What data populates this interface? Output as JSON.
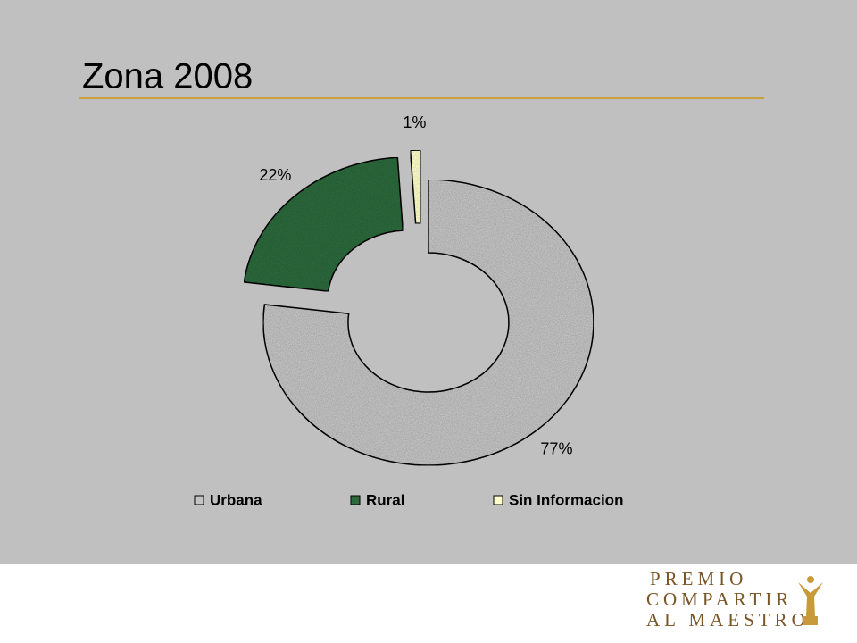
{
  "chart_data": {
    "type": "doughnut",
    "title": "Zona 2008",
    "categories": [
      "Urbana",
      "Rural",
      "Sin Informacion"
    ],
    "values": [
      77,
      22,
      1
    ],
    "value_labels": [
      "77%",
      "22%",
      "1%"
    ],
    "colors": [
      "#c4c4c4",
      "#2f6a3c",
      "#ffffcc"
    ],
    "legend": "bottom"
  },
  "footer": {
    "logo_lines": [
      "PREMIO",
      "COMPARTIR",
      "AL MAESTRO"
    ]
  }
}
